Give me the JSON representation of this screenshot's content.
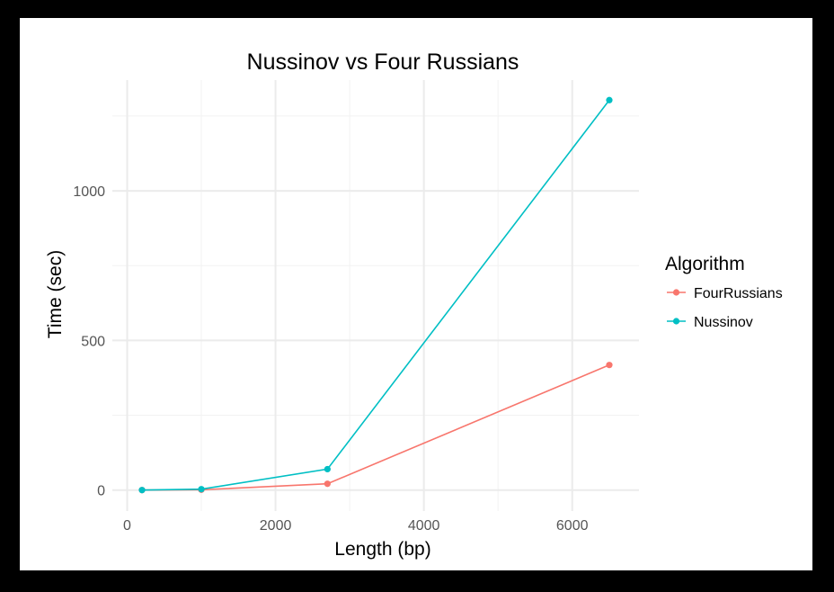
{
  "chart_data": {
    "type": "line",
    "title": "Nussinov vs Four Russians",
    "xlabel": "Length (bp)",
    "ylabel": "Time (sec)",
    "xlim": [
      -200,
      6900
    ],
    "ylim": [
      -70,
      1370
    ],
    "xticks": [
      0,
      2000,
      4000,
      6000
    ],
    "yticks": [
      0,
      500,
      1000
    ],
    "grid": true,
    "legend": {
      "title": "Algorithm",
      "placement": "right"
    },
    "series": [
      {
        "name": "FourRussians",
        "color": "#F8766D",
        "x": [
          200,
          1000,
          2700,
          6500
        ],
        "y": [
          0,
          1,
          21,
          418
        ]
      },
      {
        "name": "Nussinov",
        "color": "#00BFC4",
        "x": [
          200,
          1000,
          2700,
          6500
        ],
        "y": [
          0,
          3,
          70,
          1303
        ]
      }
    ]
  }
}
